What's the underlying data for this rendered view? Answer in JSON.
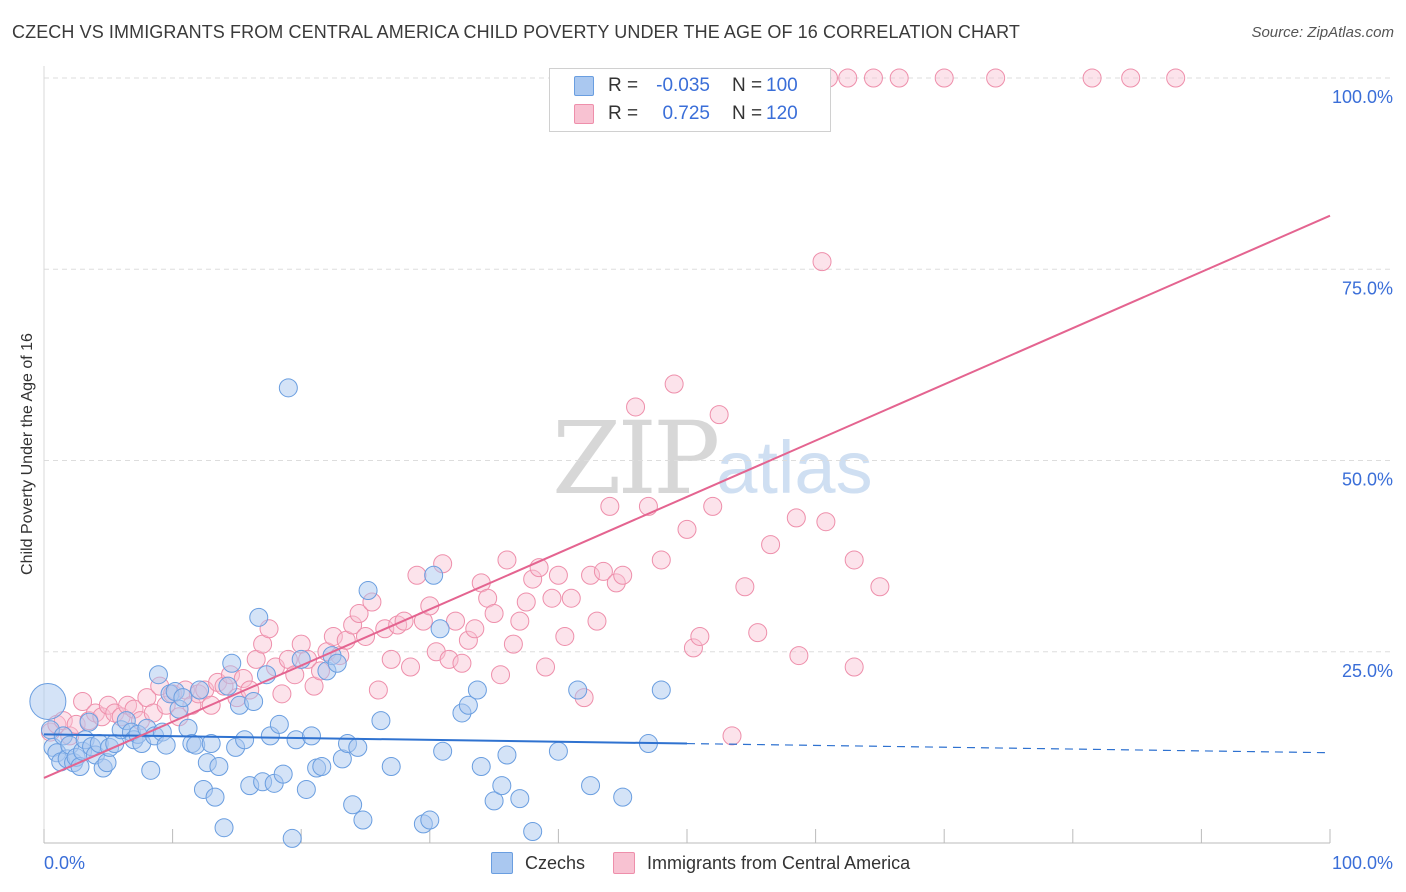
{
  "title": "CZECH VS IMMIGRANTS FROM CENTRAL AMERICA CHILD POVERTY UNDER THE AGE OF 16 CORRELATION CHART",
  "source": "Source: ZipAtlas.com",
  "watermark": {
    "zip": "ZIP",
    "atlas": "atlas"
  },
  "legend": {
    "rows": [
      {
        "r_label": "R =",
        "r_value": "-0.035",
        "n_label": "N =",
        "n_value": "100"
      },
      {
        "r_label": "R =",
        "r_value": "0.725",
        "n_label": "N =",
        "n_value": "120"
      }
    ]
  },
  "colors": {
    "czech_fill": "#aac8f0",
    "czech_stroke": "#6a9ee0",
    "czech_line": "#2f72d0",
    "cam_fill": "#f8c2d2",
    "cam_stroke": "#ee8fab",
    "cam_line": "#e46490",
    "tick_label": "#3a6ed8",
    "grid": "#dddddd"
  },
  "chart_data": {
    "type": "scatter",
    "title": "CZECH VS IMMIGRANTS FROM CENTRAL AMERICA CHILD POVERTY UNDER THE AGE OF 16 CORRELATION CHART",
    "xlabel": "",
    "ylabel": "Child Poverty Under the Age of 16",
    "xlim": [
      0,
      100
    ],
    "ylim": [
      0,
      100
    ],
    "x_tick_labels": [
      "0.0%",
      "100.0%"
    ],
    "y_tick_values": [
      25,
      50,
      75,
      100
    ],
    "y_tick_labels": [
      "25.0%",
      "50.0%",
      "75.0%",
      "100.0%"
    ],
    "grid": true,
    "legend_position": "top-center",
    "series": [
      {
        "name": "Czechs",
        "trend": {
          "x0": 0,
          "y0": 14.2,
          "x1": 50,
          "y1": 13.0,
          "dashed_to_x": 100,
          "dashed_to_y": 11.8
        },
        "points": [
          [
            0.3,
            18.5
          ],
          [
            0.5,
            14.8
          ],
          [
            0.7,
            12.5
          ],
          [
            1.0,
            11.8
          ],
          [
            1.3,
            10.6
          ],
          [
            1.5,
            14.0
          ],
          [
            1.8,
            11.0
          ],
          [
            2.0,
            12.8
          ],
          [
            2.3,
            10.5
          ],
          [
            2.5,
            11.2
          ],
          [
            2.8,
            10.0
          ],
          [
            3.0,
            12.0
          ],
          [
            3.2,
            13.5
          ],
          [
            3.5,
            15.8
          ],
          [
            3.7,
            12.6
          ],
          [
            4.0,
            11.5
          ],
          [
            4.3,
            13.0
          ],
          [
            4.6,
            9.8
          ],
          [
            4.9,
            10.5
          ],
          [
            5.1,
            12.5
          ],
          [
            5.5,
            13.0
          ],
          [
            6.0,
            14.8
          ],
          [
            6.4,
            16.0
          ],
          [
            6.8,
            14.5
          ],
          [
            7.0,
            13.5
          ],
          [
            7.3,
            14.2
          ],
          [
            7.6,
            13.0
          ],
          [
            8.0,
            15.0
          ],
          [
            8.3,
            9.5
          ],
          [
            8.6,
            14.0
          ],
          [
            8.9,
            22.0
          ],
          [
            9.2,
            14.5
          ],
          [
            9.5,
            12.8
          ],
          [
            9.8,
            19.5
          ],
          [
            10.2,
            19.8
          ],
          [
            10.5,
            17.5
          ],
          [
            10.8,
            19.0
          ],
          [
            11.2,
            15.0
          ],
          [
            11.5,
            13.0
          ],
          [
            11.8,
            12.8
          ],
          [
            12.1,
            20.0
          ],
          [
            12.4,
            7.0
          ],
          [
            12.7,
            10.5
          ],
          [
            13.0,
            13.0
          ],
          [
            13.3,
            6.0
          ],
          [
            13.6,
            10.0
          ],
          [
            14.0,
            2.0
          ],
          [
            14.3,
            20.5
          ],
          [
            14.6,
            23.5
          ],
          [
            14.9,
            12.5
          ],
          [
            15.2,
            18.0
          ],
          [
            15.6,
            13.5
          ],
          [
            16.0,
            7.5
          ],
          [
            16.3,
            18.5
          ],
          [
            16.7,
            29.5
          ],
          [
            17.0,
            8.0
          ],
          [
            17.3,
            22.0
          ],
          [
            17.6,
            14.0
          ],
          [
            17.9,
            7.8
          ],
          [
            18.3,
            15.5
          ],
          [
            18.6,
            9.0
          ],
          [
            19.0,
            59.5
          ],
          [
            19.3,
            0.6
          ],
          [
            19.6,
            13.5
          ],
          [
            20.0,
            24.0
          ],
          [
            20.4,
            7.0
          ],
          [
            20.8,
            14.0
          ],
          [
            21.2,
            9.8
          ],
          [
            21.6,
            10.0
          ],
          [
            22.0,
            22.5
          ],
          [
            22.4,
            24.5
          ],
          [
            22.8,
            23.5
          ],
          [
            23.2,
            11.0
          ],
          [
            23.6,
            13.0
          ],
          [
            24.0,
            5.0
          ],
          [
            24.4,
            12.5
          ],
          [
            24.8,
            3.0
          ],
          [
            25.2,
            33.0
          ],
          [
            26.2,
            16.0
          ],
          [
            27.0,
            10.0
          ],
          [
            29.5,
            2.5
          ],
          [
            30.3,
            35.0
          ],
          [
            30.0,
            3.0
          ],
          [
            30.8,
            28.0
          ],
          [
            31.0,
            12.0
          ],
          [
            32.5,
            17.0
          ],
          [
            33.0,
            18.0
          ],
          [
            33.7,
            20.0
          ],
          [
            34.0,
            10.0
          ],
          [
            35.0,
            5.5
          ],
          [
            35.6,
            7.5
          ],
          [
            36.0,
            11.5
          ],
          [
            37.0,
            5.8
          ],
          [
            38.0,
            1.5
          ],
          [
            40.0,
            12.0
          ],
          [
            41.5,
            20.0
          ],
          [
            42.5,
            7.5
          ],
          [
            45.0,
            6.0
          ],
          [
            47.0,
            13.0
          ],
          [
            48.0,
            20.0
          ]
        ]
      },
      {
        "name": "Immigrants from Central America",
        "trend": {
          "x0": 0,
          "y0": 8.5,
          "x1": 100,
          "y1": 82.0
        },
        "points": [
          [
            0.5,
            14.5
          ],
          [
            1.0,
            15.5
          ],
          [
            1.5,
            16.0
          ],
          [
            2.0,
            14.0
          ],
          [
            2.5,
            15.5
          ],
          [
            3.0,
            18.5
          ],
          [
            3.5,
            16.0
          ],
          [
            4.0,
            17.0
          ],
          [
            4.5,
            16.5
          ],
          [
            5.0,
            18.0
          ],
          [
            5.5,
            17.0
          ],
          [
            6.0,
            16.5
          ],
          [
            6.5,
            18.0
          ],
          [
            7.0,
            17.5
          ],
          [
            7.5,
            16.0
          ],
          [
            8.0,
            19.0
          ],
          [
            8.5,
            17.0
          ],
          [
            9.0,
            20.5
          ],
          [
            9.5,
            18.0
          ],
          [
            10.0,
            19.5
          ],
          [
            10.5,
            16.5
          ],
          [
            11.0,
            20.0
          ],
          [
            11.5,
            18.0
          ],
          [
            12.0,
            19.5
          ],
          [
            12.5,
            20.0
          ],
          [
            13.0,
            18.0
          ],
          [
            13.5,
            21.0
          ],
          [
            14.0,
            20.5
          ],
          [
            14.5,
            22.0
          ],
          [
            15.0,
            19.0
          ],
          [
            15.5,
            21.5
          ],
          [
            16.0,
            20.0
          ],
          [
            16.5,
            24.0
          ],
          [
            17.0,
            26.0
          ],
          [
            17.5,
            28.0
          ],
          [
            18.0,
            23.0
          ],
          [
            18.5,
            19.5
          ],
          [
            19.0,
            24.0
          ],
          [
            19.5,
            22.0
          ],
          [
            20.0,
            26.0
          ],
          [
            20.5,
            24.0
          ],
          [
            21.0,
            20.5
          ],
          [
            21.5,
            22.5
          ],
          [
            22.0,
            25.0
          ],
          [
            22.5,
            27.0
          ],
          [
            23.0,
            24.5
          ],
          [
            23.5,
            26.5
          ],
          [
            24.0,
            28.5
          ],
          [
            24.5,
            30.0
          ],
          [
            25.0,
            27.0
          ],
          [
            25.5,
            31.5
          ],
          [
            26.0,
            20.0
          ],
          [
            26.5,
            28.0
          ],
          [
            27.0,
            24.0
          ],
          [
            27.5,
            28.5
          ],
          [
            28.0,
            29.0
          ],
          [
            28.5,
            23.0
          ],
          [
            29.0,
            35.0
          ],
          [
            29.5,
            29.0
          ],
          [
            30.0,
            31.0
          ],
          [
            30.5,
            25.0
          ],
          [
            31.0,
            36.5
          ],
          [
            31.5,
            24.0
          ],
          [
            32.0,
            29.0
          ],
          [
            32.5,
            23.5
          ],
          [
            33.0,
            26.5
          ],
          [
            33.5,
            28.0
          ],
          [
            34.0,
            34.0
          ],
          [
            34.5,
            32.0
          ],
          [
            35.0,
            30.0
          ],
          [
            35.5,
            22.0
          ],
          [
            36.0,
            37.0
          ],
          [
            36.5,
            26.0
          ],
          [
            37.0,
            29.0
          ],
          [
            37.5,
            31.5
          ],
          [
            38.0,
            34.5
          ],
          [
            38.5,
            36.0
          ],
          [
            39.0,
            23.0
          ],
          [
            39.5,
            32.0
          ],
          [
            40.0,
            35.0
          ],
          [
            40.5,
            27.0
          ],
          [
            41.0,
            32.0
          ],
          [
            42.0,
            19.0
          ],
          [
            42.5,
            35.0
          ],
          [
            43.0,
            29.0
          ],
          [
            43.5,
            35.5
          ],
          [
            44.0,
            44.0
          ],
          [
            44.5,
            34.0
          ],
          [
            45.0,
            35.0
          ],
          [
            46.0,
            57.0
          ],
          [
            47.0,
            44.0
          ],
          [
            48.0,
            37.0
          ],
          [
            49.0,
            60.0
          ],
          [
            50.0,
            41.0
          ],
          [
            50.5,
            25.5
          ],
          [
            51.0,
            27.0
          ],
          [
            52.0,
            44.0
          ],
          [
            52.5,
            56.0
          ],
          [
            53.5,
            14.0
          ],
          [
            54.5,
            33.5
          ],
          [
            55.5,
            27.5
          ],
          [
            56.5,
            39.0
          ],
          [
            58.5,
            42.5
          ],
          [
            58.7,
            24.5
          ],
          [
            60.5,
            76.0
          ],
          [
            60.8,
            42.0
          ],
          [
            63.0,
            37.0
          ],
          [
            63.0,
            23.0
          ],
          [
            65.0,
            33.5
          ],
          [
            57.0,
            100.0
          ],
          [
            58.0,
            100.0
          ],
          [
            62.5,
            100.0
          ],
          [
            64.5,
            100.0
          ],
          [
            66.5,
            100.0
          ],
          [
            70.0,
            100.0
          ],
          [
            74.0,
            100.0
          ],
          [
            88.0,
            100.0
          ],
          [
            84.5,
            100.0
          ],
          [
            81.5,
            100.0
          ],
          [
            61.0,
            100.0
          ]
        ]
      }
    ]
  }
}
